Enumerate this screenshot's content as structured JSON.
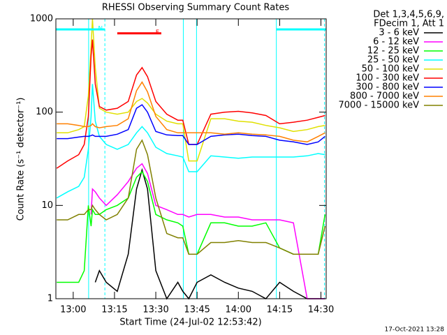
{
  "chart_data": {
    "type": "line",
    "title": "RHESSI Observing Summary Count Rates",
    "xlabel": "Start Time (24-Jul-02 12:53:42)",
    "ylabel": "Count Rate (s⁻¹ detector⁻¹)",
    "legend_header": [
      "Det 1,3,4,5,6,9,",
      "FDecim 1, Att 1"
    ],
    "footer": "17-Oct-2021 13:28",
    "log_y": true,
    "xlim": [
      773.7,
      871.9
    ],
    "xticks": [
      {
        "value": 780,
        "label": "13:00"
      },
      {
        "value": 795,
        "label": "13:15"
      },
      {
        "value": 810,
        "label": "13:30"
      },
      {
        "value": 825,
        "label": "13:45"
      },
      {
        "value": 840,
        "label": "14:00"
      },
      {
        "value": 855,
        "label": "14:15"
      },
      {
        "value": 870,
        "label": "14:30"
      }
    ],
    "ylim": [
      1,
      1000
    ],
    "yticks": [
      1,
      10,
      100,
      1000
    ],
    "x": [
      774,
      778,
      782,
      784,
      785.5,
      786.5,
      787,
      788,
      789.5,
      792,
      796,
      800,
      803,
      805,
      807,
      810,
      814,
      818,
      819.8,
      822,
      825,
      830,
      835,
      840,
      845,
      850,
      855,
      860,
      865,
      869,
      871.5
    ],
    "series": [
      {
        "name": "3 - 6 keV",
        "color": "#000000",
        "values": [
          null,
          null,
          null,
          null,
          null,
          null,
          null,
          1.5,
          2,
          1.5,
          1.2,
          3,
          15,
          24,
          15,
          2,
          1,
          1.5,
          1.2,
          1,
          1.5,
          1.8,
          1.5,
          1.3,
          1.2,
          1,
          1.5,
          1.2,
          1,
          1,
          1
        ]
      },
      {
        "name": "6 - 12 keV",
        "color": "#ff00ff",
        "values": [
          null,
          null,
          null,
          null,
          null,
          8,
          15,
          14,
          12,
          10,
          13,
          18,
          25,
          28,
          22,
          10,
          9,
          8,
          8,
          7.5,
          8,
          8,
          7.5,
          7.5,
          7,
          7,
          7,
          6.5,
          1,
          1,
          1
        ]
      },
      {
        "name": "12 - 25 keV",
        "color": "#00ff00",
        "values": [
          1.5,
          1.5,
          1.5,
          2,
          10,
          6,
          9,
          8,
          8,
          9,
          10,
          12,
          20,
          23,
          18,
          8,
          7,
          6.5,
          6,
          3,
          3,
          6.5,
          6.5,
          6,
          6,
          6.5,
          3.5,
          3,
          3,
          3,
          8
        ]
      },
      {
        "name": "25 - 50 keV",
        "color": "#00ffff",
        "values": [
          12,
          14,
          16,
          20,
          40,
          90,
          200,
          80,
          55,
          45,
          40,
          45,
          60,
          70,
          60,
          42,
          36,
          34,
          33,
          23,
          23,
          34,
          33,
          32,
          33,
          33,
          33,
          33,
          34,
          36,
          35
        ]
      },
      {
        "name": "50 - 100 keV",
        "color": "#e0e000",
        "values": [
          60,
          60,
          65,
          70,
          150,
          500,
          1000,
          300,
          110,
          100,
          95,
          100,
          130,
          140,
          125,
          95,
          80,
          75,
          75,
          30,
          30,
          85,
          85,
          80,
          78,
          72,
          68,
          62,
          65,
          70,
          72
        ]
      },
      {
        "name": "100 - 300 keV",
        "color": "#ff0000",
        "values": [
          25,
          30,
          35,
          45,
          90,
          400,
          600,
          200,
          115,
          105,
          110,
          130,
          250,
          300,
          240,
          130,
          95,
          82,
          82,
          45,
          45,
          95,
          100,
          102,
          98,
          92,
          75,
          78,
          82,
          88,
          92
        ]
      },
      {
        "name": "300 - 800 keV",
        "color": "#0000ff",
        "values": [
          52,
          52,
          54,
          55,
          55,
          56,
          57,
          55,
          55,
          55,
          58,
          65,
          110,
          120,
          100,
          62,
          57,
          56,
          56,
          45,
          45,
          55,
          57,
          58,
          56,
          55,
          50,
          48,
          45,
          48,
          55
        ]
      },
      {
        "name": "800 - 7000 keV",
        "color": "#ff8000",
        "values": [
          75,
          75,
          72,
          70,
          70,
          72,
          75,
          70,
          68,
          70,
          72,
          85,
          170,
          210,
          165,
          90,
          65,
          60,
          60,
          60,
          60,
          60,
          58,
          60,
          58,
          57,
          55,
          50,
          48,
          55,
          60
        ]
      },
      {
        "name": "7000 - 15000 keV",
        "color": "#808000",
        "values": [
          7,
          7,
          8,
          8,
          9,
          9,
          10,
          9,
          8,
          7,
          8,
          12,
          40,
          50,
          35,
          12,
          5,
          4.5,
          4.5,
          3,
          3,
          4,
          4,
          4.2,
          4,
          4,
          3.5,
          3,
          3,
          3,
          6
        ]
      }
    ],
    "bars": [
      {
        "label": "N",
        "x": [
          773.7,
          791.5
        ],
        "y": 770,
        "color": "#00ffff"
      },
      {
        "x": [
          853.8,
          871.9
        ],
        "y": 770,
        "color": "#00ffff"
      },
      {
        "label": "F",
        "x": [
          796,
          812
        ],
        "y": 700,
        "color": "#ff0000"
      }
    ],
    "vlines": {
      "color": "#00ffff",
      "lines": [
        {
          "x": 785.6,
          "dashed": false
        },
        {
          "x": 791.5,
          "dashed": true
        },
        {
          "x": 820,
          "dashed": false
        },
        {
          "x": 824.8,
          "dashed": false
        },
        {
          "x": 853.8,
          "dashed": false
        },
        {
          "x": 871.3,
          "dashed": true
        }
      ]
    }
  }
}
